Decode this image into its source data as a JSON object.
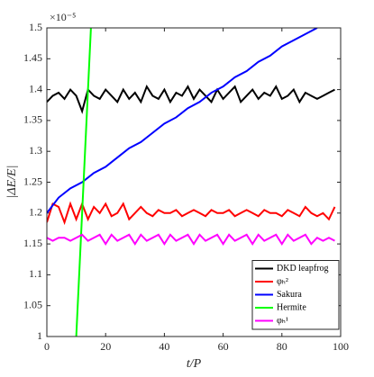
{
  "chart_data": {
    "type": "line",
    "y_multiplier": "×10⁻⁵",
    "x_label": "t/P",
    "y_label": "|ΔE/E|",
    "xlim": [
      0,
      100
    ],
    "xticks": [
      0,
      20,
      40,
      60,
      80,
      100
    ],
    "ylim": [
      1,
      1.5
    ],
    "yticks": [
      1,
      1.05,
      1.1,
      1.15,
      1.2,
      1.25,
      1.3,
      1.35,
      1.4,
      1.45,
      1.5
    ],
    "grid": false,
    "legend": "lower right",
    "series": [
      {
        "name": "DKD leapfrog",
        "color": "#000000",
        "x": [
          0,
          2,
          4,
          6,
          8,
          10,
          12,
          14,
          16,
          18,
          20,
          22,
          24,
          26,
          28,
          30,
          32,
          34,
          36,
          38,
          40,
          42,
          44,
          46,
          48,
          50,
          52,
          54,
          56,
          58,
          60,
          62,
          64,
          66,
          68,
          70,
          72,
          74,
          76,
          78,
          80,
          82,
          84,
          86,
          88,
          90,
          92,
          94,
          96,
          98
        ],
        "values": [
          1.38,
          1.39,
          1.395,
          1.385,
          1.4,
          1.39,
          1.365,
          1.4,
          1.39,
          1.385,
          1.4,
          1.39,
          1.38,
          1.4,
          1.385,
          1.395,
          1.38,
          1.405,
          1.39,
          1.385,
          1.4,
          1.38,
          1.395,
          1.39,
          1.405,
          1.385,
          1.4,
          1.39,
          1.38,
          1.4,
          1.385,
          1.395,
          1.405,
          1.38,
          1.39,
          1.4,
          1.385,
          1.395,
          1.39,
          1.405,
          1.385,
          1.39,
          1.4,
          1.38,
          1.395,
          1.39,
          1.385,
          1.39,
          1.395,
          1.4
        ]
      },
      {
        "name": "φₕ²",
        "color": "#ff0000",
        "x": [
          0,
          2,
          4,
          6,
          8,
          10,
          12,
          14,
          16,
          18,
          20,
          22,
          24,
          26,
          28,
          30,
          32,
          34,
          36,
          38,
          40,
          42,
          44,
          46,
          48,
          50,
          52,
          54,
          56,
          58,
          60,
          62,
          64,
          66,
          68,
          70,
          72,
          74,
          76,
          78,
          80,
          82,
          84,
          86,
          88,
          90,
          92,
          94,
          96,
          98
        ],
        "values": [
          1.185,
          1.215,
          1.21,
          1.185,
          1.215,
          1.19,
          1.215,
          1.19,
          1.21,
          1.2,
          1.215,
          1.195,
          1.2,
          1.215,
          1.19,
          1.2,
          1.21,
          1.2,
          1.195,
          1.205,
          1.2,
          1.2,
          1.205,
          1.195,
          1.2,
          1.205,
          1.2,
          1.195,
          1.205,
          1.2,
          1.2,
          1.205,
          1.195,
          1.2,
          1.205,
          1.2,
          1.195,
          1.205,
          1.2,
          1.2,
          1.195,
          1.205,
          1.2,
          1.195,
          1.21,
          1.2,
          1.195,
          1.2,
          1.19,
          1.21
        ]
      },
      {
        "name": "Sakura",
        "color": "#0000ff",
        "x": [
          0,
          4,
          8,
          12,
          16,
          20,
          24,
          28,
          32,
          36,
          40,
          44,
          48,
          52,
          56,
          60,
          64,
          68,
          72,
          76,
          80,
          84,
          88,
          92
        ],
        "values": [
          1.2,
          1.225,
          1.24,
          1.25,
          1.265,
          1.275,
          1.29,
          1.305,
          1.315,
          1.33,
          1.345,
          1.355,
          1.37,
          1.38,
          1.395,
          1.405,
          1.42,
          1.43,
          1.445,
          1.455,
          1.47,
          1.48,
          1.49,
          1.5
        ]
      },
      {
        "name": "Hermite",
        "color": "#00ff00",
        "x": [
          10,
          15
        ],
        "values": [
          1,
          1.5
        ]
      },
      {
        "name": "φₕ¹",
        "color": "#ff00ff",
        "x": [
          0,
          2,
          4,
          6,
          8,
          10,
          12,
          14,
          16,
          18,
          20,
          22,
          24,
          26,
          28,
          30,
          32,
          34,
          36,
          38,
          40,
          42,
          44,
          46,
          48,
          50,
          52,
          54,
          56,
          58,
          60,
          62,
          64,
          66,
          68,
          70,
          72,
          74,
          76,
          78,
          80,
          82,
          84,
          86,
          88,
          90,
          92,
          94,
          96,
          98
        ],
        "values": [
          1.16,
          1.155,
          1.16,
          1.16,
          1.155,
          1.16,
          1.165,
          1.155,
          1.16,
          1.165,
          1.15,
          1.165,
          1.155,
          1.16,
          1.165,
          1.15,
          1.165,
          1.155,
          1.16,
          1.165,
          1.15,
          1.165,
          1.155,
          1.16,
          1.165,
          1.15,
          1.165,
          1.155,
          1.16,
          1.165,
          1.15,
          1.165,
          1.155,
          1.16,
          1.165,
          1.15,
          1.165,
          1.155,
          1.16,
          1.165,
          1.15,
          1.165,
          1.155,
          1.16,
          1.165,
          1.15,
          1.16,
          1.155,
          1.16,
          1.155
        ]
      }
    ]
  }
}
